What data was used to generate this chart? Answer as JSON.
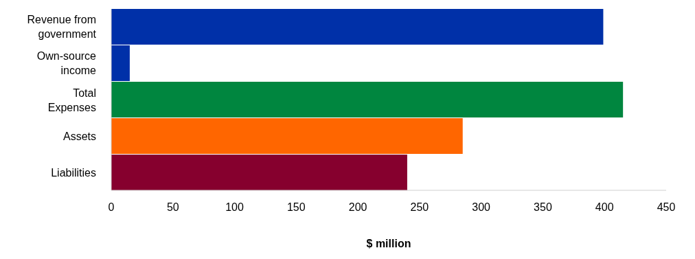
{
  "chart_data": {
    "type": "bar",
    "orientation": "horizontal",
    "xlabel": "$ million",
    "categories": [
      "Revenue from government",
      "Own-source income",
      "Total Expenses",
      "Assets",
      "Liabilities"
    ],
    "values": [
      399,
      15,
      415,
      285,
      240
    ],
    "colors": [
      "#0030a8",
      "#0030a8",
      "#00863f",
      "#ff6600",
      "#86002e"
    ],
    "xlim": [
      0,
      450
    ],
    "xticks": [
      0,
      50,
      100,
      150,
      200,
      250,
      300,
      350,
      400,
      450
    ],
    "grid": false
  }
}
